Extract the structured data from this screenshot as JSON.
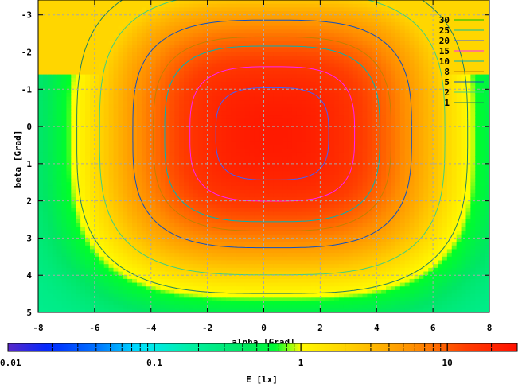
{
  "chart_data": {
    "type": "heatmap",
    "xlabel": "alpha [Grad]",
    "ylabel": "beta [Grad]",
    "xlim": [
      -8,
      8
    ],
    "ylim": [
      -3.4,
      5
    ],
    "x_ticks": [
      "-8",
      "-6",
      "-4",
      "-2",
      "0",
      "2",
      "4",
      "6",
      "8"
    ],
    "y_ticks": [
      "-3",
      "-2",
      "-1",
      "0",
      "1",
      "2",
      "3",
      "4",
      "5"
    ],
    "grid": true,
    "legend_position": "top-right",
    "colorbar": {
      "label": "E [lx]",
      "scale": "log",
      "range": [
        0.01,
        30
      ],
      "ticks": [
        "0.01",
        "0.1",
        "1",
        "10"
      ]
    },
    "contour_levels": [
      {
        "level": "30",
        "color": "#00c000"
      },
      {
        "level": "25",
        "color": "#00c0a0"
      },
      {
        "level": "20",
        "color": "#4060ff"
      },
      {
        "level": "15",
        "color": "#ff20ff"
      },
      {
        "level": "10",
        "color": "#00b4b4"
      },
      {
        "level": "8",
        "color": "#c08000"
      },
      {
        "level": "5",
        "color": "#1050c0"
      },
      {
        "level": "2",
        "color": "#40d080"
      },
      {
        "level": "1",
        "color": "#208060"
      }
    ],
    "field": {
      "peak_value": 25,
      "peak_center": [
        0.3,
        0.2
      ],
      "shoulder_x": 4.2,
      "shoulder_y": 2.6,
      "sharpness": 3.2,
      "edge_value": 0.22,
      "cutoff_value": 1.8
    }
  }
}
